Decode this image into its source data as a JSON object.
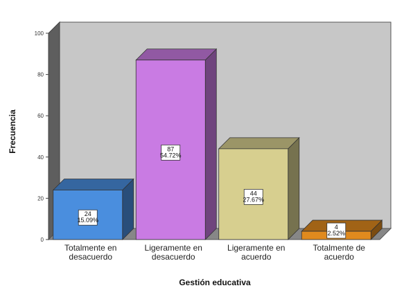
{
  "chart_data": {
    "type": "bar",
    "title": "",
    "xlabel": "Gestión educativa",
    "ylabel": "Frecuencia",
    "ylim": [
      0,
      100
    ],
    "yticks": [
      0,
      20,
      40,
      60,
      80,
      100
    ],
    "grid": false,
    "categories": [
      [
        "Totalmente en",
        "desacuerdo"
      ],
      [
        "Ligeramente en",
        "desacuerdo"
      ],
      [
        "Ligeramente en",
        "acuerdo"
      ],
      [
        "Totalmente de",
        "acuerdo"
      ]
    ],
    "values": [
      24,
      87,
      44,
      4
    ],
    "data_labels": [
      [
        "24",
        "15.09%"
      ],
      [
        "87",
        "54.72%"
      ],
      [
        "44",
        "27.67%"
      ],
      [
        "4",
        "2.52%"
      ]
    ],
    "colors": [
      "#4a8ede",
      "#c97be3",
      "#d7cf8f",
      "#e08a1e"
    ],
    "wall_color": "#c7c7c7",
    "floor_color": "#878787"
  }
}
